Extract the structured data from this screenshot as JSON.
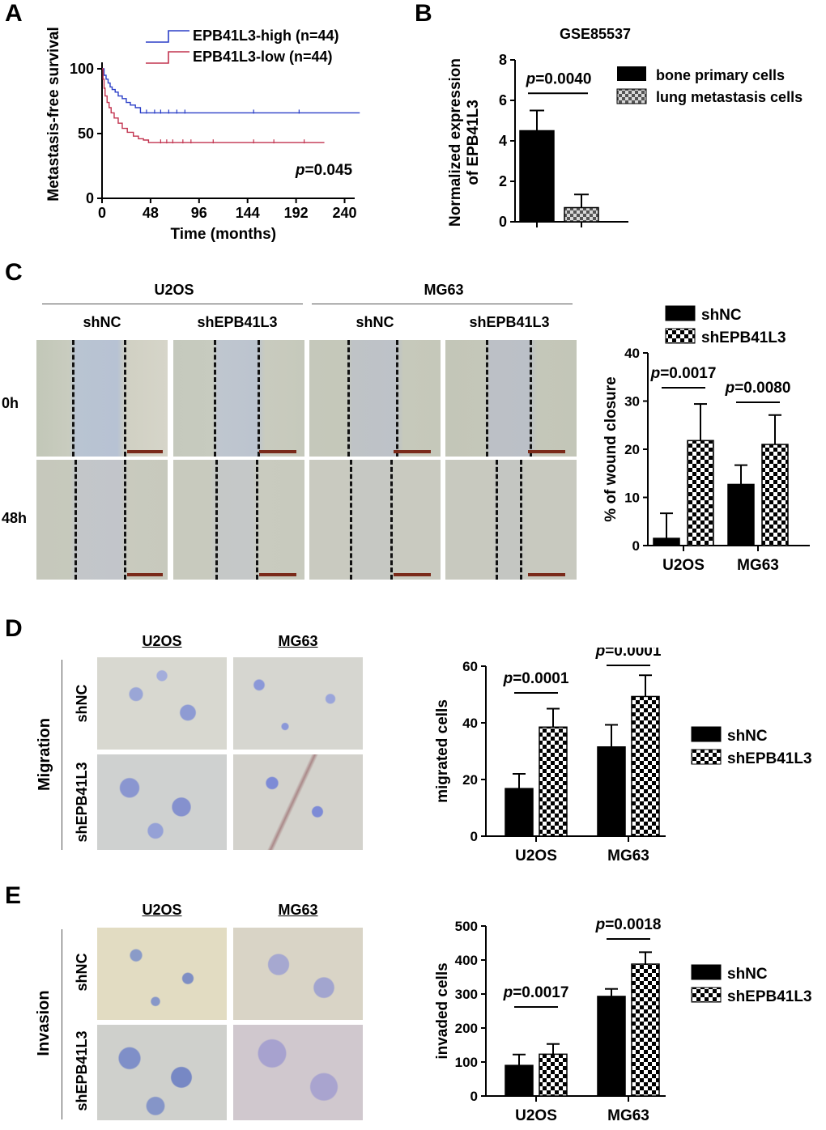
{
  "panels": {
    "A": {
      "label": "A",
      "legend": [
        "EPB41L3-high (n=44)",
        "EPB41L3-low (n=44)"
      ],
      "pvalue_prefix": "p",
      "pvalue_rest": "=0.045"
    },
    "B": {
      "label": "B",
      "title": "GSE85537",
      "legend": [
        "bone primary cells",
        "lung metastasis cells"
      ],
      "pvalue_prefix": "p",
      "pvalue_rest": "=0.0040"
    },
    "C": {
      "label": "C",
      "cell_lines": [
        "U2OS",
        "MG63"
      ],
      "conditions": [
        "shNC",
        "shEPB41L3",
        "shNC",
        "shEPB41L3"
      ],
      "times": [
        "0h",
        "48h"
      ],
      "legend": [
        "shNC",
        "shEPB41L3"
      ],
      "pvalues": [
        "=0.0017",
        "=0.0080"
      ],
      "pvalue_prefix": "p"
    },
    "D": {
      "label": "D",
      "cell_lines": [
        "U2OS",
        "MG63"
      ],
      "row_group": "Migration",
      "rows": [
        "shNC",
        "shEPB41L3"
      ],
      "legend": [
        "shNC",
        "shEPB41L3"
      ],
      "pvalues": [
        "=0.0001",
        "=0.0001"
      ],
      "pvalue_prefix": "p"
    },
    "E": {
      "label": "E",
      "cell_lines": [
        "U2OS",
        "MG63"
      ],
      "row_group": "Invasion",
      "rows": [
        "shNC",
        "shEPB41L3"
      ],
      "legend": [
        "shNC",
        "shEPB41L3"
      ],
      "pvalues": [
        "=0.0017",
        "=0.0018"
      ],
      "pvalue_prefix": "p"
    }
  },
  "colors": {
    "high": "#2b3fc7",
    "low": "#c2334f",
    "bar_dark": "#000000",
    "micro_wound": "#c9cfc6",
    "micro_stain": "#cdd3e6"
  },
  "chart_data": [
    {
      "id": "A",
      "type": "line",
      "xlabel": "Time (months)",
      "ylabel": "Metastasis-free survival",
      "xlim": [
        0,
        250
      ],
      "ylim": [
        0,
        105
      ],
      "xticks": [
        0,
        48,
        96,
        144,
        192,
        240
      ],
      "yticks": [
        0,
        50,
        100
      ],
      "series": [
        {
          "name": "EPB41L3-high (n=44)",
          "x": [
            0,
            2,
            4,
            6,
            8,
            10,
            13,
            16,
            20,
            24,
            28,
            33,
            38,
            255
          ],
          "y": [
            100,
            95,
            92,
            89,
            86,
            84,
            82,
            79,
            77,
            74,
            72,
            70,
            66,
            66
          ],
          "censor_x": [
            44,
            52,
            58,
            66,
            74,
            82,
            150,
            195
          ]
        },
        {
          "name": "EPB41L3-low (n=44)",
          "x": [
            0,
            1,
            2,
            3,
            5,
            7,
            9,
            12,
            16,
            20,
            25,
            31,
            36,
            41,
            46,
            220
          ],
          "y": [
            100,
            92,
            85,
            79,
            74,
            70,
            66,
            62,
            58,
            54,
            51,
            48,
            46,
            45,
            43,
            43
          ],
          "censor_x": [
            58,
            64,
            70,
            80,
            88,
            110,
            150,
            170,
            200
          ]
        }
      ]
    },
    {
      "id": "B",
      "type": "bar",
      "title": "GSE85537",
      "categories": [
        "bone primary cells",
        "lung metastasis cells"
      ],
      "values": [
        4.5,
        0.7
      ],
      "errors": [
        1.0,
        0.65
      ],
      "ylabel": "Normalized expression of EPB41L3",
      "ylim": [
        0,
        8
      ],
      "yticks": [
        0,
        2,
        4,
        6,
        8
      ]
    },
    {
      "id": "C",
      "type": "bar",
      "categories": [
        "U2OS",
        "MG63"
      ],
      "series": [
        {
          "name": "shNC",
          "values": [
            1.5,
            12.7
          ],
          "errors": [
            5.2,
            4.0
          ]
        },
        {
          "name": "shEPB41L3",
          "values": [
            21.8,
            21.0
          ],
          "errors": [
            7.6,
            6.1
          ]
        }
      ],
      "ylabel": "% of wound closure",
      "ylim": [
        0,
        40
      ],
      "yticks": [
        0,
        10,
        20,
        30,
        40
      ]
    },
    {
      "id": "D",
      "type": "bar",
      "categories": [
        "U2OS",
        "MG63"
      ],
      "series": [
        {
          "name": "shNC",
          "values": [
            16.8,
            31.5
          ],
          "errors": [
            5.2,
            7.8
          ]
        },
        {
          "name": "shEPB41L3",
          "values": [
            38.5,
            49.3
          ],
          "errors": [
            6.5,
            7.5
          ]
        }
      ],
      "ylabel": "migrated cells",
      "ylim": [
        0,
        60
      ],
      "yticks": [
        0,
        20,
        40,
        60
      ]
    },
    {
      "id": "E",
      "type": "bar",
      "categories": [
        "U2OS",
        "MG63"
      ],
      "series": [
        {
          "name": "shNC",
          "values": [
            90,
            293
          ],
          "errors": [
            32,
            22
          ]
        },
        {
          "name": "shEPB41L3",
          "values": [
            123,
            388
          ],
          "errors": [
            30,
            35
          ]
        }
      ],
      "ylabel": "invaded cells",
      "ylim": [
        0,
        500
      ],
      "yticks": [
        0,
        100,
        200,
        300,
        400,
        500
      ]
    }
  ]
}
